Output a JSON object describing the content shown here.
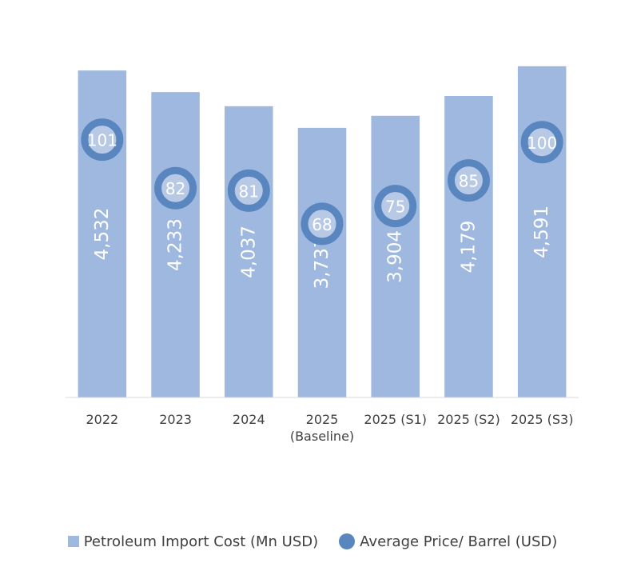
{
  "chart_data": {
    "type": "bar",
    "categories": [
      "2022",
      "2023",
      "2024",
      "2025\n(Baseline)",
      "2025 (S1)",
      "2025 (S2)",
      "2025 (S3)"
    ],
    "series": [
      {
        "name": "Petroleum Import Cost (Mn USD)",
        "type": "bar",
        "values": [
          4532,
          4233,
          4037,
          3737,
          3904,
          4179,
          4591
        ],
        "labels": [
          "4,532",
          "4,233",
          "4,037",
          "3,737",
          "3,904",
          "4,179",
          "4,591"
        ],
        "color": "#9fb8df"
      },
      {
        "name": "Average Price/ Barrel (USD)",
        "type": "scatter",
        "values": [
          101,
          82,
          81,
          68,
          75,
          85,
          100
        ],
        "labels": [
          "101",
          "82",
          "81",
          "68",
          "75",
          "85",
          "100"
        ],
        "color": "#5a86bf"
      }
    ],
    "ylim": [
      0,
      4600
    ],
    "y2lim": [
      0,
      130
    ],
    "title": "",
    "xlabel": "",
    "ylabel": "",
    "grid": false,
    "legend": "bottom"
  }
}
